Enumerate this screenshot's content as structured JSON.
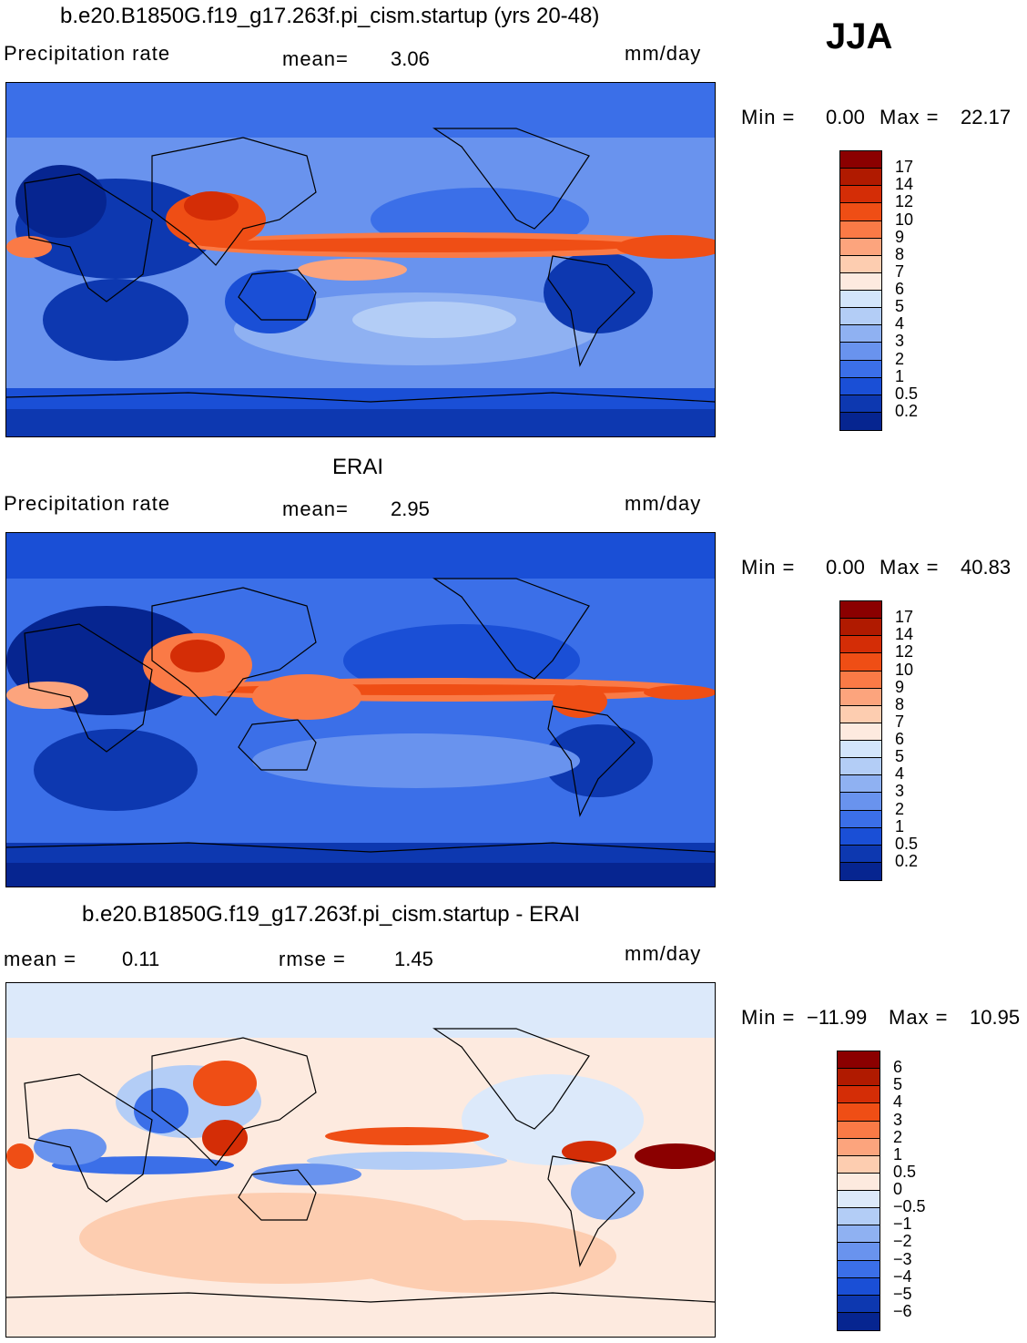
{
  "season": "JJA",
  "chart_data": [
    {
      "type": "heatmap",
      "title": "b.e20.B1850G.f19_g17.263f.pi_cism.startup (yrs 20-48)",
      "variable": "Precipitation rate",
      "units": "mm/day",
      "mean_label": "mean=",
      "mean": "3.06",
      "min_label": "Min =",
      "min": "0.00",
      "max_label": "Max =",
      "max": "22.17",
      "colorbar_levels": [
        "17",
        "14",
        "12",
        "10",
        "9",
        "8",
        "7",
        "6",
        "5",
        "4",
        "3",
        "2",
        "1",
        "0.5",
        "0.2"
      ],
      "colorbar_colors": [
        "#8b0000",
        "#b01a00",
        "#d42d06",
        "#ef4e15",
        "#fa7a46",
        "#fca47d",
        "#fdcdb0",
        "#fdeadf",
        "#d3e5fb",
        "#b3cdf6",
        "#8fb1f2",
        "#6993ee",
        "#3b6fe8",
        "#1a4fd6",
        "#0d38b0",
        "#062590"
      ]
    },
    {
      "type": "heatmap",
      "title": "ERAI",
      "variable": "Precipitation rate",
      "units": "mm/day",
      "mean_label": "mean=",
      "mean": "2.95",
      "min_label": "Min =",
      "min": "0.00",
      "max_label": "Max =",
      "max": "40.83",
      "colorbar_levels": [
        "17",
        "14",
        "12",
        "10",
        "9",
        "8",
        "7",
        "6",
        "5",
        "4",
        "3",
        "2",
        "1",
        "0.5",
        "0.2"
      ],
      "colorbar_colors": [
        "#8b0000",
        "#b01a00",
        "#d42d06",
        "#ef4e15",
        "#fa7a46",
        "#fca47d",
        "#fdcdb0",
        "#fdeadf",
        "#d3e5fb",
        "#b3cdf6",
        "#8fb1f2",
        "#6993ee",
        "#3b6fe8",
        "#1a4fd6",
        "#0d38b0",
        "#062590"
      ]
    },
    {
      "type": "heatmap",
      "title": "b.e20.B1850G.f19_g17.263f.pi_cism.startup - ERAI",
      "units": "mm/day",
      "mean_label": "mean =",
      "mean": "0.11",
      "rmse_label": "rmse =",
      "rmse": "1.45",
      "min_label": "Min =",
      "min": "−11.99",
      "max_label": "Max =",
      "max": "10.95",
      "colorbar_levels": [
        "6",
        "5",
        "4",
        "3",
        "2",
        "1",
        "0.5",
        "0",
        "−0.5",
        "−1",
        "−2",
        "−3",
        "−4",
        "−5",
        "−6"
      ],
      "colorbar_colors": [
        "#8b0000",
        "#b01a00",
        "#d42d06",
        "#ef4e15",
        "#fa7a46",
        "#fca47d",
        "#fdcdb0",
        "#fdeadf",
        "#dce9fa",
        "#b3cdf6",
        "#8fb1f2",
        "#6993ee",
        "#3b6fe8",
        "#1a4fd6",
        "#0d38b0",
        "#062590"
      ]
    }
  ]
}
